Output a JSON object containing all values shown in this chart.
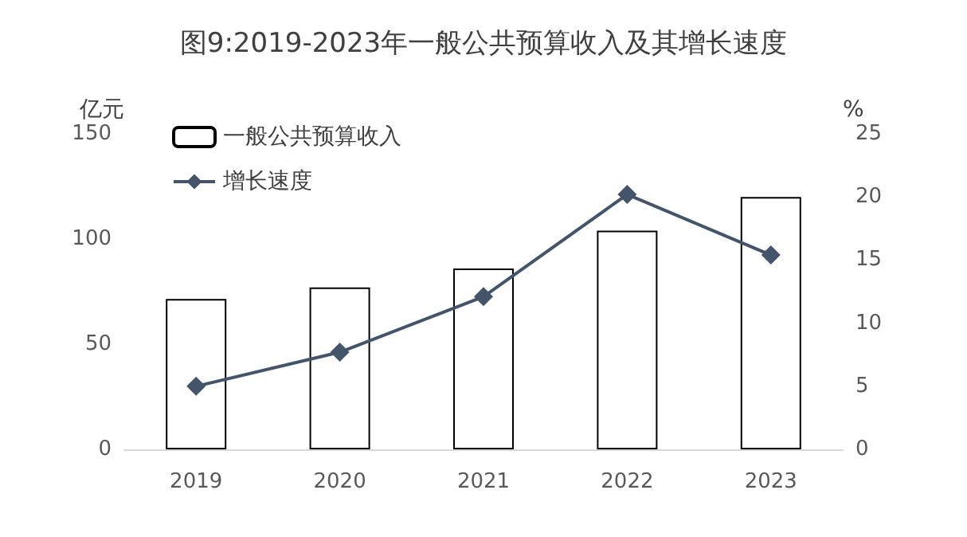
{
  "chart_data": {
    "type": "bar",
    "title": "图9:2019-2023年一般公共预算收入及其增长速度",
    "ylabel": "亿元",
    "y2label": "%",
    "categories": [
      "2019",
      "2020",
      "2021",
      "2022",
      "2023"
    ],
    "series": [
      {
        "name": "一般公共预算收入",
        "color": "#ffffff",
        "values": [
          71.5,
          77,
          86,
          104,
          120
        ]
      },
      {
        "name": "增长速度",
        "type": "line",
        "axis": "y2",
        "color": "#44546a",
        "marker": "diamond",
        "values": [
          5.0,
          7.7,
          12.1,
          20.2,
          15.4
        ]
      }
    ],
    "ylim": [
      0,
      150
    ],
    "yticks": [
      0,
      50,
      100,
      150
    ],
    "y2lim": [
      0,
      25
    ],
    "y2ticks": [
      0,
      5,
      10,
      15,
      20,
      25
    ],
    "grid": false,
    "legend": "top left"
  }
}
